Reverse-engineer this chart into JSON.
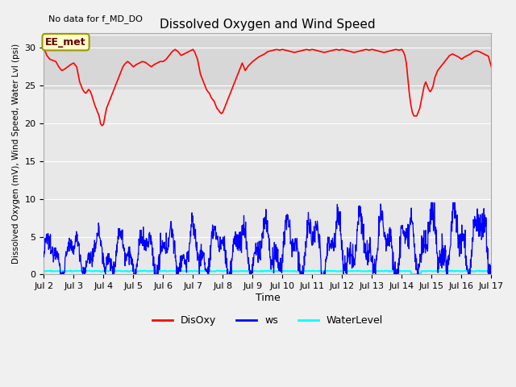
{
  "title": "Dissolved Oxygen and Wind Speed",
  "no_data_text": "No data for f_MD_DO",
  "ylabel": "Dissolved Oxygen (mV), Wind Speed, Water Lvl (psi)",
  "xlabel": "Time",
  "ylim": [
    0,
    32
  ],
  "yticks": [
    0,
    5,
    10,
    15,
    20,
    25,
    30
  ],
  "figsize": [
    6.4,
    4.8
  ],
  "dpi": 100,
  "background_color": "#f0f0f0",
  "plot_bg_color": "#e8e8e8",
  "band_ymin": 24.5,
  "band_ymax": 31.5,
  "band_color": "#d0d0d0",
  "annotation_text": "EE_met",
  "disoxy_color": "red",
  "ws_color": "blue",
  "water_color": "cyan",
  "x_tick_labels": [
    "Jul 2",
    "Jul 3",
    "Jul 4",
    "Jul 5",
    "Jul 6",
    "Jul 7",
    "Jul 8",
    "Jul 9",
    "Jul 10",
    "Jul 11",
    "Jul 12",
    "Jul 13",
    "Jul 14",
    "Jul 15",
    "Jul 16",
    "Jul 17"
  ],
  "x_tick_positions": [
    2,
    3,
    4,
    5,
    6,
    7,
    8,
    9,
    10,
    11,
    12,
    13,
    14,
    15,
    16,
    17
  ],
  "disoxy_x": [
    2.0,
    2.05,
    2.1,
    2.2,
    2.4,
    2.5,
    2.6,
    2.7,
    2.8,
    2.9,
    3.0,
    3.1,
    3.15,
    3.2,
    3.25,
    3.3,
    3.35,
    3.4,
    3.45,
    3.5,
    3.55,
    3.6,
    3.7,
    3.75,
    3.8,
    3.85,
    3.9,
    3.95,
    4.0,
    4.05,
    4.1,
    4.15,
    4.2,
    4.25,
    4.3,
    4.35,
    4.4,
    4.45,
    4.5,
    4.55,
    4.6,
    4.65,
    4.7,
    4.75,
    4.8,
    4.85,
    4.9,
    4.95,
    5.0,
    5.1,
    5.2,
    5.3,
    5.4,
    5.5,
    5.6,
    5.7,
    5.8,
    5.9,
    6.0,
    6.1,
    6.2,
    6.3,
    6.4,
    6.5,
    6.6,
    6.7,
    6.8,
    6.9,
    7.0,
    7.05,
    7.1,
    7.15,
    7.2,
    7.25,
    7.3,
    7.35,
    7.4,
    7.45,
    7.5,
    7.55,
    7.6,
    7.65,
    7.7,
    7.75,
    7.8,
    7.85,
    7.9,
    7.95,
    8.0,
    8.05,
    8.1,
    8.15,
    8.2,
    8.25,
    8.3,
    8.35,
    8.4,
    8.45,
    8.5,
    8.55,
    8.6,
    8.65,
    8.7,
    8.75,
    8.8,
    8.85,
    8.9,
    8.95,
    9.0,
    9.1,
    9.2,
    9.3,
    9.4,
    9.5,
    9.6,
    9.7,
    9.8,
    9.9,
    10.0,
    10.1,
    10.2,
    10.3,
    10.4,
    10.5,
    10.6,
    10.7,
    10.8,
    10.9,
    11.0,
    11.1,
    11.2,
    11.3,
    11.4,
    11.5,
    11.6,
    11.7,
    11.8,
    11.9,
    12.0,
    12.1,
    12.2,
    12.3,
    12.4,
    12.5,
    12.6,
    12.7,
    12.8,
    12.9,
    13.0,
    13.1,
    13.2,
    13.3,
    13.4,
    13.5,
    13.6,
    13.7,
    13.8,
    13.9,
    14.0,
    14.05,
    14.1,
    14.15,
    14.2,
    14.25,
    14.3,
    14.35,
    14.4,
    14.45,
    14.5,
    14.55,
    14.6,
    14.65,
    14.7,
    14.75,
    14.8,
    14.85,
    14.9,
    14.95,
    15.0,
    15.05,
    15.1,
    15.2,
    15.3,
    15.4,
    15.5,
    15.6,
    15.7,
    15.8,
    15.9,
    16.0,
    16.1,
    16.2,
    16.3,
    16.4,
    16.5,
    16.6,
    16.7,
    16.8,
    16.9,
    17.0
  ],
  "disoxy_y": [
    30.0,
    29.5,
    29.0,
    28.5,
    28.2,
    27.5,
    27.0,
    27.2,
    27.5,
    27.8,
    28.0,
    27.5,
    26.5,
    25.5,
    25.0,
    24.5,
    24.2,
    24.0,
    24.2,
    24.5,
    24.3,
    23.8,
    22.5,
    22.0,
    21.5,
    21.0,
    20.0,
    19.7,
    19.9,
    21.0,
    22.0,
    22.5,
    23.0,
    23.5,
    24.0,
    24.5,
    25.0,
    25.5,
    26.0,
    26.5,
    27.0,
    27.5,
    27.8,
    28.0,
    28.2,
    28.1,
    27.9,
    27.7,
    27.5,
    27.8,
    28.0,
    28.2,
    28.1,
    27.8,
    27.5,
    27.8,
    28.0,
    28.2,
    28.2,
    28.5,
    29.0,
    29.5,
    29.8,
    29.5,
    29.0,
    29.2,
    29.4,
    29.6,
    29.8,
    29.5,
    29.0,
    28.5,
    27.5,
    26.5,
    26.0,
    25.5,
    25.0,
    24.5,
    24.2,
    24.0,
    23.5,
    23.2,
    23.0,
    22.5,
    22.0,
    21.8,
    21.5,
    21.3,
    21.5,
    22.0,
    22.5,
    23.0,
    23.5,
    24.0,
    24.5,
    25.0,
    25.5,
    26.0,
    26.5,
    27.0,
    27.5,
    28.0,
    27.5,
    27.0,
    27.3,
    27.6,
    27.8,
    28.0,
    28.2,
    28.5,
    28.8,
    29.0,
    29.2,
    29.5,
    29.6,
    29.7,
    29.8,
    29.7,
    29.8,
    29.7,
    29.6,
    29.5,
    29.4,
    29.5,
    29.6,
    29.7,
    29.8,
    29.7,
    29.8,
    29.7,
    29.6,
    29.5,
    29.4,
    29.5,
    29.6,
    29.7,
    29.8,
    29.7,
    29.8,
    29.7,
    29.6,
    29.5,
    29.4,
    29.5,
    29.6,
    29.7,
    29.8,
    29.7,
    29.8,
    29.7,
    29.6,
    29.5,
    29.4,
    29.5,
    29.6,
    29.7,
    29.8,
    29.7,
    29.8,
    29.5,
    29.0,
    28.0,
    26.0,
    24.0,
    22.5,
    21.5,
    21.0,
    21.0,
    21.0,
    21.5,
    22.0,
    23.0,
    24.0,
    25.0,
    25.5,
    25.0,
    24.5,
    24.2,
    24.5,
    25.0,
    26.0,
    27.0,
    27.5,
    28.0,
    28.5,
    29.0,
    29.2,
    29.0,
    28.8,
    28.5,
    28.8,
    29.0,
    29.2,
    29.5,
    29.6,
    29.5,
    29.3,
    29.1,
    28.9,
    27.5
  ]
}
